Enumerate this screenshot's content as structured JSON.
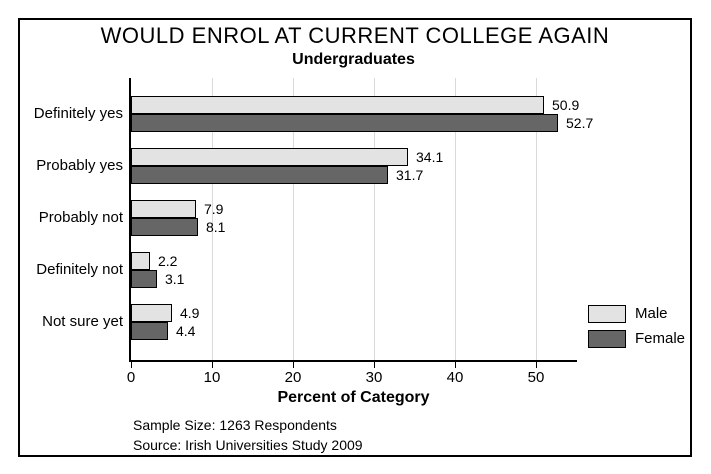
{
  "colors": {
    "male_bar": "#e3e3e3",
    "female_bar": "#666666",
    "gridline": "#d9d9d9",
    "axis": "#000000",
    "frame_border": "#000000",
    "background": "#ffffff"
  },
  "chart_data": {
    "type": "bar",
    "orientation": "horizontal",
    "title": "WOULD ENROL AT CURRENT COLLEGE AGAIN",
    "subtitle": "Undergraduates",
    "xlabel": "Percent of Category",
    "categories": [
      "Definitely yes",
      "Probably yes",
      "Probably not",
      "Definitely not",
      "Not sure yet"
    ],
    "series": [
      {
        "name": "Male",
        "color": "#e3e3e3",
        "values": [
          50.9,
          34.1,
          7.9,
          2.2,
          4.9
        ]
      },
      {
        "name": "Female",
        "color": "#666666",
        "values": [
          52.7,
          31.7,
          8.1,
          3.1,
          4.4
        ]
      }
    ],
    "xlim": [
      0,
      55
    ],
    "xticks": [
      0,
      10,
      20,
      30,
      40,
      50
    ],
    "grid": true,
    "legend_position": "right",
    "value_labels_shown": true,
    "footnotes": [
      "Sample Size: 1263 Respondents",
      "Source: Irish Universities Study 2009"
    ]
  }
}
